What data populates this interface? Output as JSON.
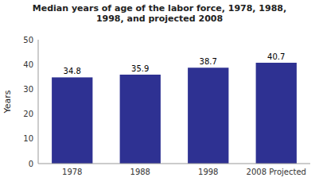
{
  "chart_data": {
    "type": "bar",
    "title": "Median years of age of the labor force, 1978, 1988,\n1998, and projected 2008",
    "categories": [
      "1978",
      "1988",
      "1998",
      "2008 Projected"
    ],
    "values": [
      34.8,
      35.9,
      38.7,
      40.7
    ],
    "color": "#2e3192",
    "ylabel": "Years",
    "ylim": [
      0,
      50
    ],
    "yticks": [
      0,
      10,
      20,
      30,
      40,
      50
    ],
    "grid": false,
    "data_labels": true
  }
}
